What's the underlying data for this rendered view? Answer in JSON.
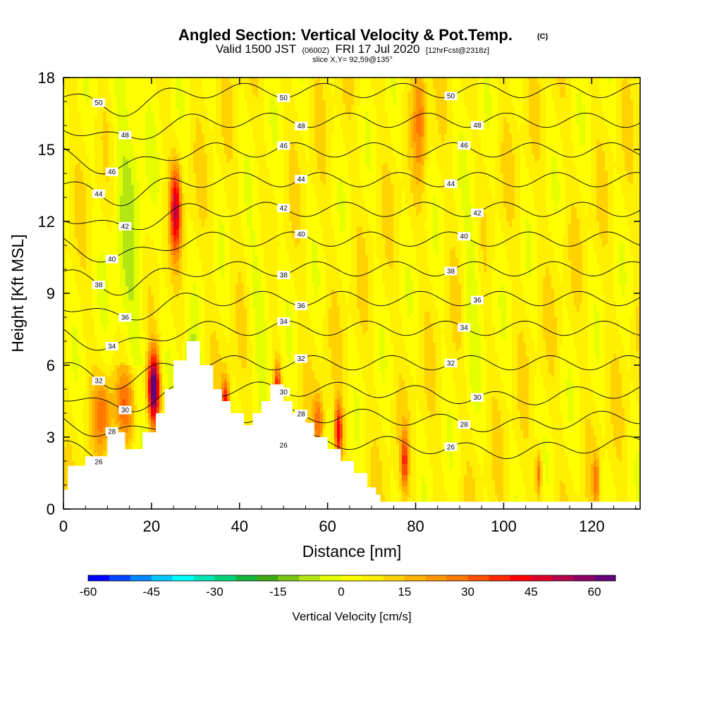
{
  "chart_data": {
    "type": "heatmap",
    "title": "Angled Section: Vertical Velocity & Pot.Temp.",
    "title_units": "(C)",
    "subtitle_prefix": "Valid 1500 JST",
    "subtitle_zulu": "(0600Z)",
    "subtitle_date": "FRI 17 Jul 2020",
    "subtitle_fcst": "[12hrFcst@2318z]",
    "slice_label": "slice X,Y= 92,59@135°",
    "xlabel": "Distance [nm]",
    "ylabel": "Height [Kft MSL]",
    "xlim": [
      0,
      131
    ],
    "ylim": [
      0,
      18
    ],
    "x_ticks": [
      "0",
      "20",
      "40",
      "60",
      "80",
      "100",
      "120"
    ],
    "y_ticks": [
      "0",
      "3",
      "6",
      "9",
      "12",
      "15",
      "18"
    ],
    "colorbar": {
      "label": "Vertical Velocity [cm/s]",
      "range": [
        -60,
        65
      ],
      "tick_labels": [
        "-60",
        "-45",
        "-30",
        "-15",
        "0",
        "15",
        "30",
        "45",
        "60"
      ],
      "colors": [
        "#0000ff",
        "#0044ff",
        "#0088ff",
        "#00c8ff",
        "#00ffff",
        "#00e6b4",
        "#00d278",
        "#14b43c",
        "#3caa14",
        "#78c814",
        "#b4e614",
        "#e6ff00",
        "#ffff00",
        "#fff000",
        "#ffd200",
        "#ffb400",
        "#ff9600",
        "#ff7800",
        "#ff5000",
        "#ff2800",
        "#ff0000",
        "#dc0028",
        "#b4004b",
        "#8c0064",
        "#640078"
      ]
    },
    "theta_contours": [
      {
        "level": 26,
        "label": "26"
      },
      {
        "level": 28,
        "label": "28"
      },
      {
        "level": 30,
        "label": "30"
      },
      {
        "level": 32,
        "label": "32"
      },
      {
        "level": 34,
        "label": "34"
      },
      {
        "level": 36,
        "label": "36"
      },
      {
        "level": 38,
        "label": "38"
      },
      {
        "level": 40,
        "label": "40"
      },
      {
        "level": 42,
        "label": "42"
      },
      {
        "level": 44,
        "label": "44"
      },
      {
        "level": 46,
        "label": "46"
      },
      {
        "level": 48,
        "label": "48"
      },
      {
        "level": 50,
        "label": "50"
      }
    ],
    "terrain": [
      [
        0,
        0.8
      ],
      [
        1,
        0.8
      ],
      [
        1,
        1.8
      ],
      [
        5,
        1.8
      ],
      [
        5,
        2.2
      ],
      [
        10,
        2.2
      ],
      [
        10,
        3.2
      ],
      [
        14,
        3.2
      ],
      [
        14,
        2.5
      ],
      [
        18,
        2.5
      ],
      [
        18,
        3.2
      ],
      [
        21,
        3.2
      ],
      [
        21,
        4.0
      ],
      [
        23,
        4.0
      ],
      [
        23,
        5.0
      ],
      [
        25,
        5.0
      ],
      [
        25,
        6.2
      ],
      [
        28,
        6.2
      ],
      [
        28,
        7.0
      ],
      [
        31,
        7.0
      ],
      [
        31,
        6.0
      ],
      [
        34,
        6.0
      ],
      [
        34,
        5.0
      ],
      [
        36,
        5.0
      ],
      [
        36,
        4.5
      ],
      [
        38,
        4.5
      ],
      [
        38,
        4.0
      ],
      [
        41,
        4.0
      ],
      [
        41,
        3.5
      ],
      [
        43,
        3.5
      ],
      [
        43,
        4.0
      ],
      [
        45,
        4.0
      ],
      [
        45,
        4.5
      ],
      [
        47,
        4.5
      ],
      [
        47,
        5.2
      ],
      [
        50,
        5.2
      ],
      [
        50,
        4.5
      ],
      [
        52,
        4.5
      ],
      [
        52,
        4.0
      ],
      [
        55,
        4.0
      ],
      [
        55,
        3.6
      ],
      [
        57,
        3.6
      ],
      [
        57,
        3.0
      ],
      [
        60,
        3.0
      ],
      [
        60,
        2.5
      ],
      [
        63,
        2.5
      ],
      [
        63,
        2.0
      ],
      [
        66,
        2.0
      ],
      [
        66,
        1.5
      ],
      [
        69,
        1.5
      ],
      [
        69,
        0.9
      ],
      [
        71,
        0.9
      ],
      [
        71,
        0.6
      ],
      [
        72,
        0.6
      ],
      [
        72,
        0.3
      ],
      [
        131,
        0.3
      ]
    ]
  }
}
